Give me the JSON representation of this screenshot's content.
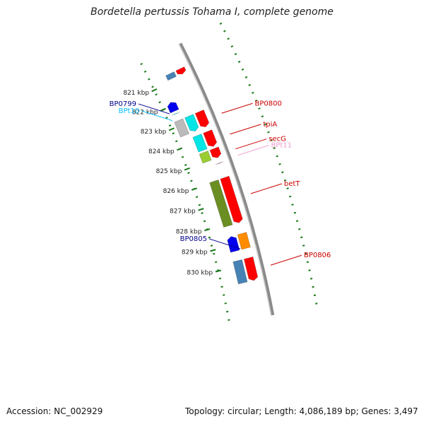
{
  "title": "Bordetella pertussis Tohama I, complete genome",
  "footer": {
    "accession": "Accession: NC_002929",
    "summary": "Topology: circular; Length: 4,086,189 bp; Genes: 3,497"
  },
  "colors": {
    "backbone": "#8a8a8a",
    "tick_dots": "#1a7a1a",
    "red": "#ff0000",
    "cyan": "#00e5e5",
    "gray": "#bbbbbb",
    "blue": "#0000ee",
    "steelblue": "#4682b4",
    "olive": "#6b8e23",
    "lime": "#9acd32",
    "orange": "#ff8c00",
    "label_red": "#cc0000",
    "label_blue": "#00008b",
    "label_cyan": "#00bfff",
    "label_pink": "#ee99cc"
  },
  "ticks": [
    {
      "label": "821 kbp",
      "kbp": 821
    },
    {
      "label": "822 kbp",
      "kbp": 822
    },
    {
      "label": "823 kbp",
      "kbp": 823
    },
    {
      "label": "824 kbp",
      "kbp": 824
    },
    {
      "label": "825 kbp",
      "kbp": 825
    },
    {
      "label": "826 kbp",
      "kbp": 826
    },
    {
      "label": "827 kbp",
      "kbp": 827
    },
    {
      "label": "828 kbp",
      "kbp": 828
    },
    {
      "label": "829 kbp",
      "kbp": 829
    },
    {
      "label": "830 kbp",
      "kbp": 830
    }
  ],
  "features": [
    {
      "name": "red-821a",
      "start": 820.62,
      "end": 820.88,
      "lane": -1,
      "color": "red",
      "arrow": "down"
    },
    {
      "name": "steel-821a",
      "start": 820.62,
      "end": 820.86,
      "lane": -2,
      "color": "steelblue",
      "arrow": "none"
    },
    {
      "name": "bp0799",
      "start": 821.83,
      "end": 822.28,
      "lane": -3,
      "color": "blue",
      "arrow": "up"
    },
    {
      "name": "bpt10",
      "start": 822.4,
      "end": 822.46,
      "lane": -3,
      "color": "cyan",
      "arrow": "up-small"
    },
    {
      "name": "bp0800-red",
      "start": 822.75,
      "end": 823.5,
      "lane": -1,
      "color": "red",
      "arrow": "down"
    },
    {
      "name": "bp0800-cyan",
      "start": 822.75,
      "end": 823.5,
      "lane": -2,
      "color": "cyan",
      "arrow": "down"
    },
    {
      "name": "bp0800-gray",
      "start": 822.75,
      "end": 823.5,
      "lane": -3,
      "color": "gray",
      "arrow": "none"
    },
    {
      "name": "tpia-red",
      "start": 823.72,
      "end": 824.45,
      "lane": -1,
      "color": "red",
      "arrow": "down"
    },
    {
      "name": "tpia-cyan",
      "start": 823.72,
      "end": 824.45,
      "lane": -2,
      "color": "cyan",
      "arrow": "none"
    },
    {
      "name": "secg-red",
      "start": 824.55,
      "end": 825.0,
      "lane": -1,
      "color": "red",
      "arrow": "down"
    },
    {
      "name": "secg-lime",
      "start": 824.55,
      "end": 825.0,
      "lane": -2,
      "color": "lime",
      "arrow": "none"
    },
    {
      "name": "bpt11",
      "start": 825.2,
      "end": 825.27,
      "lane": -1,
      "color": "label_pink",
      "arrow": "down-small"
    },
    {
      "name": "bett-red",
      "start": 825.95,
      "end": 828.1,
      "lane": -1,
      "color": "red",
      "arrow": "down"
    },
    {
      "name": "bett-olive",
      "start": 825.95,
      "end": 828.1,
      "lane": -2,
      "color": "olive",
      "arrow": "none"
    },
    {
      "name": "bp0805-orange",
      "start": 828.6,
      "end": 829.3,
      "lane": -1,
      "color": "orange",
      "arrow": "none"
    },
    {
      "name": "bp0805-blue",
      "start": 828.6,
      "end": 829.3,
      "lane": -2,
      "color": "blue",
      "arrow": "up"
    },
    {
      "name": "bp0806-red",
      "start": 829.75,
      "end": 830.8,
      "lane": -1,
      "color": "red",
      "arrow": "down"
    },
    {
      "name": "bp0806-steel",
      "start": 829.75,
      "end": 830.8,
      "lane": -2,
      "color": "steelblue",
      "arrow": "none"
    }
  ],
  "labels": [
    {
      "name": "label-bp0799",
      "text": "BP0799",
      "color": "label_blue",
      "side": "left",
      "kbp": 822.3,
      "lane": -3
    },
    {
      "name": "label-bpt10",
      "text": "BPt10",
      "color": "label_cyan",
      "side": "left",
      "kbp": 822.65,
      "lane": -3
    },
    {
      "name": "label-bp0800",
      "text": "BP0800",
      "color": "label_red",
      "side": "right",
      "kbp": 823.2,
      "lane": -3
    },
    {
      "name": "label-tpia",
      "text": "tpiA",
      "color": "label_red",
      "side": "right",
      "kbp": 824.2,
      "lane": -2
    },
    {
      "name": "label-secg",
      "text": "secG",
      "color": "label_red",
      "side": "right",
      "kbp": 824.9,
      "lane": -2
    },
    {
      "name": "label-bpt11",
      "text": "BPt11",
      "color": "label_pink",
      "side": "right",
      "kbp": 825.2,
      "lane": -2
    },
    {
      "name": "label-bett",
      "text": "betT",
      "color": "label_red",
      "side": "right",
      "kbp": 827.0,
      "lane": -2
    },
    {
      "name": "label-bp0805",
      "text": "BP0805",
      "color": "label_blue",
      "side": "left",
      "kbp": 829.25,
      "lane": -1
    },
    {
      "name": "label-bp0806",
      "text": "BP0806",
      "color": "label_red",
      "side": "right",
      "kbp": 830.3,
      "lane": -2
    }
  ]
}
